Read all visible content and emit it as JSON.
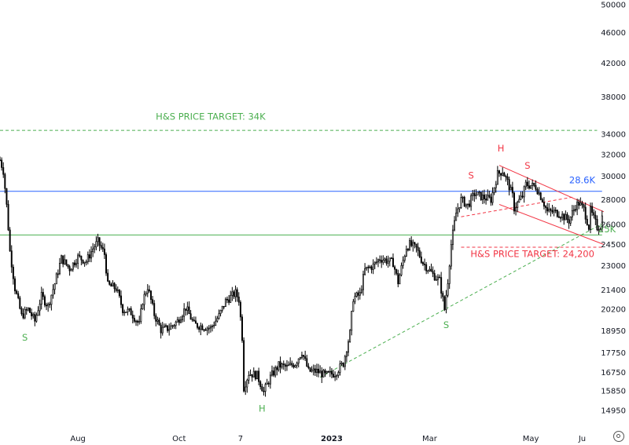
{
  "chart_data": {
    "type": "candlestick",
    "title": "",
    "xlabel": "",
    "ylabel": "",
    "y_scale": "log",
    "ylim": [
      14200,
      50000
    ],
    "y_ticks": [
      50000,
      46000,
      42000,
      38000,
      34000,
      32000,
      30000,
      28000,
      26000,
      24500,
      23000,
      21400,
      20200,
      18950,
      17750,
      16750,
      15850,
      14950
    ],
    "x_ticks": [
      {
        "label": "Aug",
        "date": "2022-08-01",
        "bold": false
      },
      {
        "label": "Oct",
        "date": "2022-10-01",
        "bold": false
      },
      {
        "label": "7",
        "date": "2022-11-07",
        "bold": false
      },
      {
        "label": "2023",
        "date": "2023-01-01",
        "bold": true
      },
      {
        "label": "Mar",
        "date": "2023-03-01",
        "bold": false
      },
      {
        "label": "May",
        "date": "2023-05-01",
        "bold": false
      },
      {
        "label": "Ju",
        "date": "2023-06-01",
        "bold": false
      }
    ],
    "xlim": [
      "2022-06-15",
      "2023-06-15"
    ],
    "price_path": [
      [
        "2022-06-15",
        31500
      ],
      [
        "2022-06-17",
        30500
      ],
      [
        "2022-06-19",
        27500
      ],
      [
        "2022-06-21",
        24000
      ],
      [
        "2022-06-24",
        21500
      ],
      [
        "2022-06-28",
        19800
      ],
      [
        "2022-07-02",
        20200
      ],
      [
        "2022-07-06",
        19500
      ],
      [
        "2022-07-10",
        21000
      ],
      [
        "2022-07-14",
        20400
      ],
      [
        "2022-07-18",
        21800
      ],
      [
        "2022-07-22",
        23500
      ],
      [
        "2022-07-27",
        22800
      ],
      [
        "2022-08-01",
        23600
      ],
      [
        "2022-08-06",
        23300
      ],
      [
        "2022-08-10",
        24200
      ],
      [
        "2022-08-13",
        24700
      ],
      [
        "2022-08-17",
        23800
      ],
      [
        "2022-08-19",
        21700
      ],
      [
        "2022-08-24",
        21500
      ],
      [
        "2022-08-28",
        20200
      ],
      [
        "2022-09-02",
        20000
      ],
      [
        "2022-09-07",
        19300
      ],
      [
        "2022-09-09",
        20700
      ],
      [
        "2022-09-12",
        21600
      ],
      [
        "2022-09-16",
        19900
      ],
      [
        "2022-09-20",
        19000
      ],
      [
        "2022-09-25",
        19100
      ],
      [
        "2022-09-30",
        19500
      ],
      [
        "2022-10-05",
        20300
      ],
      [
        "2022-10-10",
        19300
      ],
      [
        "2022-10-15",
        19200
      ],
      [
        "2022-10-20",
        19100
      ],
      [
        "2022-10-25",
        19800
      ],
      [
        "2022-10-29",
        20700
      ],
      [
        "2022-11-04",
        21200
      ],
      [
        "2022-11-06",
        20800
      ],
      [
        "2022-11-08",
        18600
      ],
      [
        "2022-11-09",
        16000
      ],
      [
        "2022-11-12",
        16700
      ],
      [
        "2022-11-17",
        16600
      ],
      [
        "2022-11-21",
        15800
      ],
      [
        "2022-11-25",
        16500
      ],
      [
        "2022-11-30",
        17100
      ],
      [
        "2022-12-05",
        17000
      ],
      [
        "2022-12-10",
        17200
      ],
      [
        "2022-12-14",
        17800
      ],
      [
        "2022-12-18",
        16800
      ],
      [
        "2022-12-23",
        16800
      ],
      [
        "2022-12-28",
        16600
      ],
      [
        "2023-01-03",
        16700
      ],
      [
        "2023-01-08",
        17200
      ],
      [
        "2023-01-12",
        18800
      ],
      [
        "2023-01-14",
        20900
      ],
      [
        "2023-01-18",
        21100
      ],
      [
        "2023-01-21",
        22700
      ],
      [
        "2023-01-26",
        23000
      ],
      [
        "2023-01-30",
        23500
      ],
      [
        "2023-02-02",
        23400
      ],
      [
        "2023-02-07",
        23200
      ],
      [
        "2023-02-10",
        21900
      ],
      [
        "2023-02-15",
        24300
      ],
      [
        "2023-02-17",
        24500
      ],
      [
        "2023-02-21",
        24200
      ],
      [
        "2023-02-25",
        23200
      ],
      [
        "2023-03-03",
        22400
      ],
      [
        "2023-03-07",
        22000
      ],
      [
        "2023-03-10",
        20200
      ],
      [
        "2023-03-12",
        22000
      ],
      [
        "2023-03-14",
        24500
      ],
      [
        "2023-03-17",
        26900
      ],
      [
        "2023-03-20",
        28000
      ],
      [
        "2023-03-24",
        27500
      ],
      [
        "2023-03-28",
        28500
      ],
      [
        "2023-04-02",
        28200
      ],
      [
        "2023-04-07",
        28000
      ],
      [
        "2023-04-11",
        30200
      ],
      [
        "2023-04-14",
        30500
      ],
      [
        "2023-04-17",
        29500
      ],
      [
        "2023-04-20",
        28300
      ],
      [
        "2023-04-21",
        27300
      ],
      [
        "2023-04-26",
        28300
      ],
      [
        "2023-04-28",
        29300
      ],
      [
        "2023-05-04",
        29100
      ],
      [
        "2023-05-08",
        28000
      ],
      [
        "2023-05-11",
        27000
      ],
      [
        "2023-05-15",
        27000
      ],
      [
        "2023-05-19",
        26800
      ],
      [
        "2023-05-24",
        26300
      ],
      [
        "2023-05-28",
        27500
      ],
      [
        "2023-05-30",
        27700
      ],
      [
        "2023-06-02",
        27200
      ],
      [
        "2023-06-05",
        25800
      ],
      [
        "2023-06-06",
        27100
      ],
      [
        "2023-06-10",
        25800
      ],
      [
        "2023-06-12",
        25900
      ],
      [
        "2023-06-13",
        26600
      ]
    ],
    "horizontal_lines": [
      {
        "price": 34400,
        "color": "#4caf50",
        "style": "dashed"
      },
      {
        "price": 28700,
        "color": "#2962ff",
        "style": "solid"
      },
      {
        "price": 25200,
        "color": "#4caf50",
        "style": "solid"
      },
      {
        "price": 24300,
        "color": "#f23645",
        "style": "dashed"
      }
    ],
    "trend_lines": [
      {
        "from": [
          "2022-12-25",
          16500
        ],
        "to": [
          "2023-06-15",
          26200
        ],
        "color": "#4caf50",
        "style": "dashed"
      },
      {
        "from": [
          "2023-04-12",
          31000
        ],
        "to": [
          "2023-06-14",
          27000
        ],
        "color": "#f23645",
        "style": "solid"
      },
      {
        "from": [
          "2023-04-12",
          27600
        ],
        "to": [
          "2023-06-14",
          24500
        ],
        "color": "#f23645",
        "style": "solid"
      },
      {
        "from": [
          "2023-03-20",
          26600
        ],
        "to": [
          "2023-05-26",
          28200
        ],
        "color": "#f23645",
        "style": "dashed"
      }
    ],
    "annotations": [
      {
        "text": "H&S PRICE TARGET: 34K",
        "date": "2022-10-20",
        "price": 35500,
        "color": "#4caf50"
      },
      {
        "text": "28.6K",
        "date": "2023-06-01",
        "price": 29400,
        "color": "#2962ff"
      },
      {
        "text": "25K",
        "date": "2023-06-16",
        "price": 25400,
        "color": "#4caf50"
      },
      {
        "text": "H&S PRICE TARGET: 24,200",
        "date": "2023-05-02",
        "price": 23600,
        "color": "#f23645"
      },
      {
        "text": "S",
        "date": "2022-06-30",
        "price": 18400,
        "color": "#4caf50"
      },
      {
        "text": "H",
        "date": "2022-11-20",
        "price": 14900,
        "color": "#4caf50"
      },
      {
        "text": "S",
        "date": "2023-03-11",
        "price": 19100,
        "color": "#4caf50"
      },
      {
        "text": "S",
        "date": "2023-03-26",
        "price": 29800,
        "color": "#f23645"
      },
      {
        "text": "H",
        "date": "2023-04-13",
        "price": 32300,
        "color": "#f23645"
      },
      {
        "text": "S",
        "date": "2023-04-29",
        "price": 30700,
        "color": "#f23645"
      }
    ],
    "candle_colors": {
      "body": "#000000",
      "hollow": "#ffffff"
    }
  }
}
